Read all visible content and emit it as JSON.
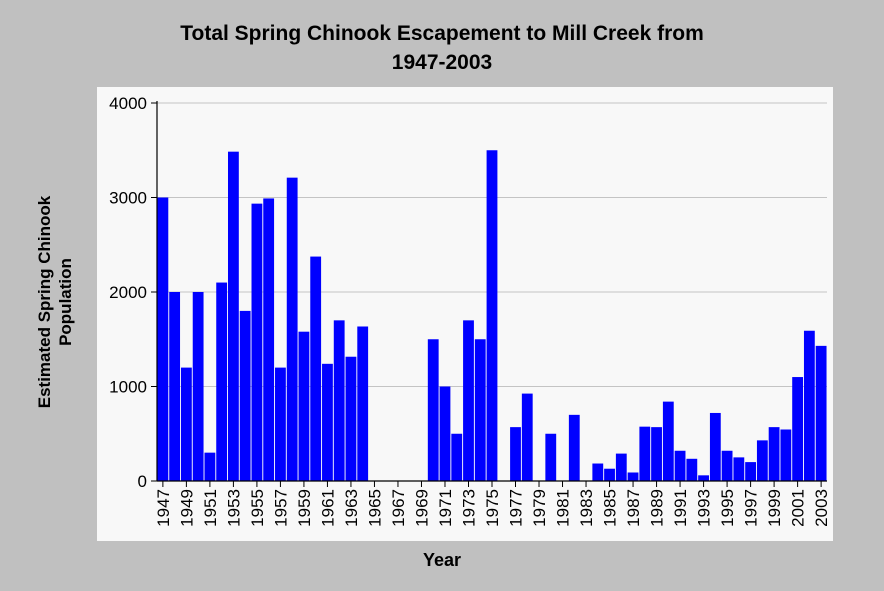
{
  "chart_data": {
    "type": "bar",
    "title": "Total Spring Chinook Escapement to Mill Creek from",
    "title_line2": "1947-2003",
    "xlabel": "Year",
    "ylabel": "Estimated Spring Chinook",
    "ylabel_line2": "Population",
    "ylim": [
      0,
      4000
    ],
    "yticks": [
      "0",
      "1000",
      "2000",
      "3000",
      "4000"
    ],
    "grid": true,
    "bar_color": "#0000ff",
    "categories": [
      "1947",
      "1948",
      "1949",
      "1950",
      "1951",
      "1952",
      "1953",
      "1954",
      "1955",
      "1956",
      "1957",
      "1958",
      "1959",
      "1960",
      "1961",
      "1962",
      "1963",
      "1964",
      "1965",
      "1966",
      "1967",
      "1968",
      "1969",
      "1970",
      "1971",
      "1972",
      "1973",
      "1974",
      "1975",
      "1976",
      "1977",
      "1978",
      "1979",
      "1980",
      "1981",
      "1982",
      "1983",
      "1984",
      "1985",
      "1986",
      "1987",
      "1988",
      "1989",
      "1990",
      "1991",
      "1992",
      "1993",
      "1994",
      "1995",
      "1996",
      "1997",
      "1998",
      "1999",
      "2000",
      "2001",
      "2002",
      "2003"
    ],
    "xtick_labels": [
      "1947",
      "1949",
      "1951",
      "1953",
      "1955",
      "1957",
      "1959",
      "1961",
      "1963",
      "1965",
      "1967",
      "1969",
      "1971",
      "1973",
      "1975",
      "1977",
      "1979",
      "1981",
      "1983",
      "1985",
      "1987",
      "1989",
      "1991",
      "1993",
      "1995",
      "1997",
      "1999",
      "2001",
      "2003"
    ],
    "values": [
      3000,
      2000,
      1200,
      2000,
      300,
      2100,
      3485,
      1800,
      2935,
      2990,
      1200,
      3210,
      1580,
      2375,
      1240,
      1700,
      1315,
      1635,
      null,
      null,
      null,
      null,
      null,
      1500,
      1000,
      500,
      1700,
      1500,
      3500,
      null,
      570,
      925,
      null,
      500,
      null,
      700,
      null,
      185,
      130,
      290,
      90,
      575,
      570,
      840,
      320,
      235,
      60,
      720,
      320,
      250,
      200,
      430,
      570,
      545,
      1100,
      1590,
      1430
    ]
  }
}
